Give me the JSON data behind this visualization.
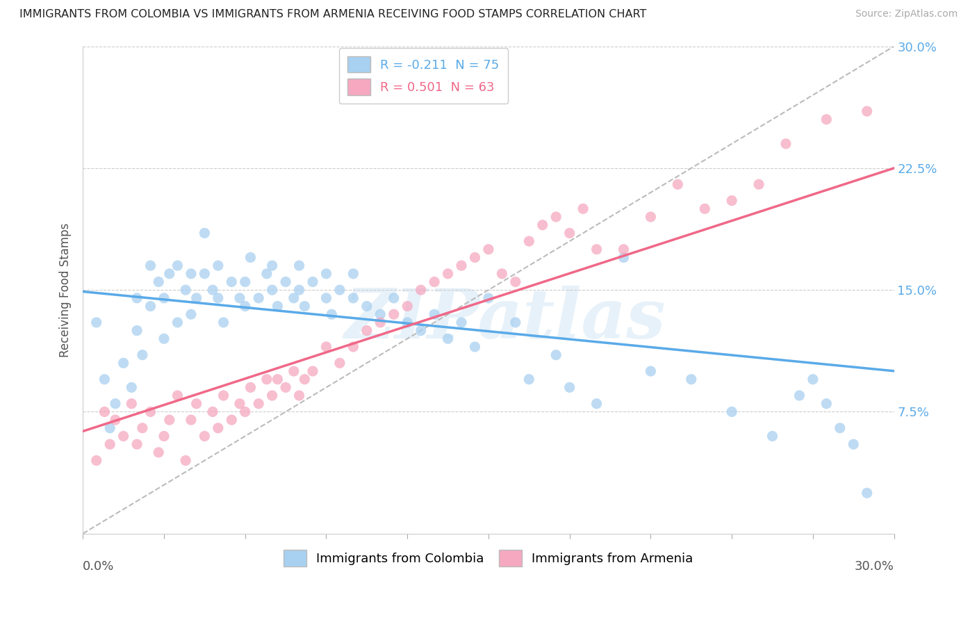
{
  "title": "IMMIGRANTS FROM COLOMBIA VS IMMIGRANTS FROM ARMENIA RECEIVING FOOD STAMPS CORRELATION CHART",
  "source": "Source: ZipAtlas.com",
  "ylabel": "Receiving Food Stamps",
  "ytick_vals": [
    0.0,
    0.075,
    0.15,
    0.225,
    0.3
  ],
  "ytick_labels": [
    "",
    "7.5%",
    "15.0%",
    "22.5%",
    "30.0%"
  ],
  "xlim": [
    0.0,
    0.3
  ],
  "ylim": [
    0.0,
    0.3
  ],
  "colombia_color": "#a8d0f0",
  "armenia_color": "#f5a8c0",
  "colombia_line_color": "#5aaae8",
  "armenia_line_color": "#f06888",
  "colombia_R": -0.211,
  "colombia_N": 75,
  "armenia_R": 0.501,
  "armenia_N": 63,
  "colombia_label": "Immigrants from Colombia",
  "armenia_label": "Immigrants from Armenia",
  "legend1_text": "R = -0.211  N = 75",
  "legend2_text": "R = 0.501  N = 63",
  "watermark": "ZIPatlas",
  "background_color": "#ffffff",
  "grid_color": "#cccccc",
  "title_color": "#222222",
  "source_color": "#aaaaaa",
  "colombia_line_intercept": 0.149,
  "colombia_line_slope": -0.163,
  "armenia_line_intercept": 0.063,
  "armenia_line_slope": 0.54,
  "gray_line_intercept": 0.0,
  "gray_line_slope": 1.0,
  "colombia_points_x": [
    0.005,
    0.008,
    0.01,
    0.012,
    0.015,
    0.018,
    0.02,
    0.02,
    0.022,
    0.025,
    0.025,
    0.028,
    0.03,
    0.03,
    0.032,
    0.035,
    0.035,
    0.038,
    0.04,
    0.04,
    0.042,
    0.045,
    0.045,
    0.048,
    0.05,
    0.05,
    0.052,
    0.055,
    0.058,
    0.06,
    0.06,
    0.062,
    0.065,
    0.068,
    0.07,
    0.07,
    0.072,
    0.075,
    0.078,
    0.08,
    0.08,
    0.082,
    0.085,
    0.09,
    0.09,
    0.092,
    0.095,
    0.1,
    0.1,
    0.105,
    0.11,
    0.115,
    0.12,
    0.125,
    0.13,
    0.135,
    0.14,
    0.145,
    0.15,
    0.16,
    0.165,
    0.175,
    0.18,
    0.19,
    0.2,
    0.21,
    0.225,
    0.24,
    0.255,
    0.265,
    0.27,
    0.275,
    0.28,
    0.285,
    0.29
  ],
  "colombia_points_y": [
    0.13,
    0.095,
    0.065,
    0.08,
    0.105,
    0.09,
    0.125,
    0.145,
    0.11,
    0.14,
    0.165,
    0.155,
    0.12,
    0.145,
    0.16,
    0.13,
    0.165,
    0.15,
    0.135,
    0.16,
    0.145,
    0.16,
    0.185,
    0.15,
    0.145,
    0.165,
    0.13,
    0.155,
    0.145,
    0.14,
    0.155,
    0.17,
    0.145,
    0.16,
    0.15,
    0.165,
    0.14,
    0.155,
    0.145,
    0.15,
    0.165,
    0.14,
    0.155,
    0.145,
    0.16,
    0.135,
    0.15,
    0.145,
    0.16,
    0.14,
    0.135,
    0.145,
    0.13,
    0.125,
    0.135,
    0.12,
    0.13,
    0.115,
    0.145,
    0.13,
    0.095,
    0.11,
    0.09,
    0.08,
    0.17,
    0.1,
    0.095,
    0.075,
    0.06,
    0.085,
    0.095,
    0.08,
    0.065,
    0.055,
    0.025
  ],
  "armenia_points_x": [
    0.005,
    0.008,
    0.01,
    0.012,
    0.015,
    0.018,
    0.02,
    0.022,
    0.025,
    0.028,
    0.03,
    0.032,
    0.035,
    0.038,
    0.04,
    0.042,
    0.045,
    0.048,
    0.05,
    0.052,
    0.055,
    0.058,
    0.06,
    0.062,
    0.065,
    0.068,
    0.07,
    0.072,
    0.075,
    0.078,
    0.08,
    0.082,
    0.085,
    0.09,
    0.095,
    0.1,
    0.105,
    0.11,
    0.115,
    0.12,
    0.125,
    0.13,
    0.135,
    0.14,
    0.145,
    0.15,
    0.155,
    0.16,
    0.165,
    0.17,
    0.175,
    0.18,
    0.185,
    0.19,
    0.2,
    0.21,
    0.22,
    0.23,
    0.24,
    0.25,
    0.26,
    0.275,
    0.29
  ],
  "armenia_points_y": [
    0.045,
    0.075,
    0.055,
    0.07,
    0.06,
    0.08,
    0.055,
    0.065,
    0.075,
    0.05,
    0.06,
    0.07,
    0.085,
    0.045,
    0.07,
    0.08,
    0.06,
    0.075,
    0.065,
    0.085,
    0.07,
    0.08,
    0.075,
    0.09,
    0.08,
    0.095,
    0.085,
    0.095,
    0.09,
    0.1,
    0.085,
    0.095,
    0.1,
    0.115,
    0.105,
    0.115,
    0.125,
    0.13,
    0.135,
    0.14,
    0.15,
    0.155,
    0.16,
    0.165,
    0.17,
    0.175,
    0.16,
    0.155,
    0.18,
    0.19,
    0.195,
    0.185,
    0.2,
    0.175,
    0.175,
    0.195,
    0.215,
    0.2,
    0.205,
    0.215,
    0.24,
    0.255,
    0.26
  ]
}
